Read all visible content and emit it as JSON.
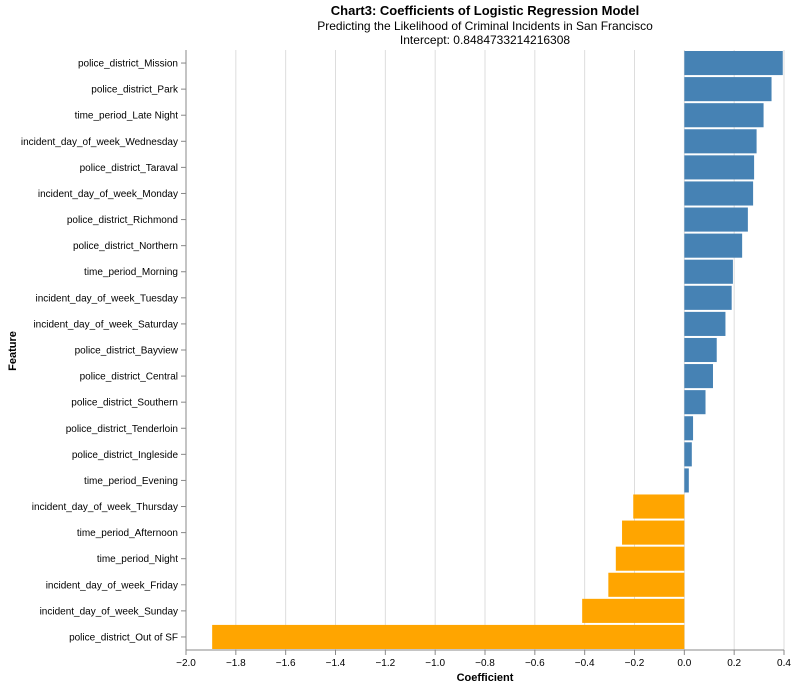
{
  "chart_data": {
    "type": "bar",
    "orientation": "horizontal",
    "title": "Chart3: Coefficients of Logistic Regression Model",
    "subtitle": [
      "Predicting the Likelihood of Criminal Incidents in San Francisco",
      "Intercept: 0.8484733214216308"
    ],
    "xlabel": "Coefficient",
    "ylabel": "Feature",
    "xlim": [
      -2.0,
      0.4
    ],
    "x_ticks": [
      -2.0,
      -1.8,
      -1.6,
      -1.4,
      -1.2,
      -1.0,
      -0.8,
      -0.6,
      -0.4,
      -0.2,
      0.0,
      0.2,
      0.4
    ],
    "x_tick_labels": [
      "−2.0",
      "−1.8",
      "−1.6",
      "−1.4",
      "−1.2",
      "−1.0",
      "−0.8",
      "−0.6",
      "−0.4",
      "−0.2",
      "0.0",
      "0.2",
      "0.4"
    ],
    "grid": true,
    "colors": {
      "positive": "#4682b4",
      "negative": "#ffa500"
    },
    "categories": [
      "police_district_Mission",
      "police_district_Park",
      "time_period_Late Night",
      "incident_day_of_week_Wednesday",
      "police_district_Taraval",
      "incident_day_of_week_Monday",
      "police_district_Richmond",
      "police_district_Northern",
      "time_period_Morning",
      "incident_day_of_week_Tuesday",
      "incident_day_of_week_Saturday",
      "police_district_Bayview",
      "police_district_Central",
      "police_district_Southern",
      "police_district_Tenderloin",
      "police_district_Ingleside",
      "time_period_Evening",
      "incident_day_of_week_Thursday",
      "time_period_Afternoon",
      "time_period_Night",
      "incident_day_of_week_Friday",
      "incident_day_of_week_Sunday",
      "police_district_Out of SF"
    ],
    "values": [
      0.395,
      0.35,
      0.318,
      0.29,
      0.28,
      0.276,
      0.255,
      0.232,
      0.195,
      0.19,
      0.165,
      0.13,
      0.115,
      0.085,
      0.035,
      0.03,
      0.018,
      -0.205,
      -0.25,
      -0.275,
      -0.305,
      -0.41,
      -1.895
    ]
  }
}
